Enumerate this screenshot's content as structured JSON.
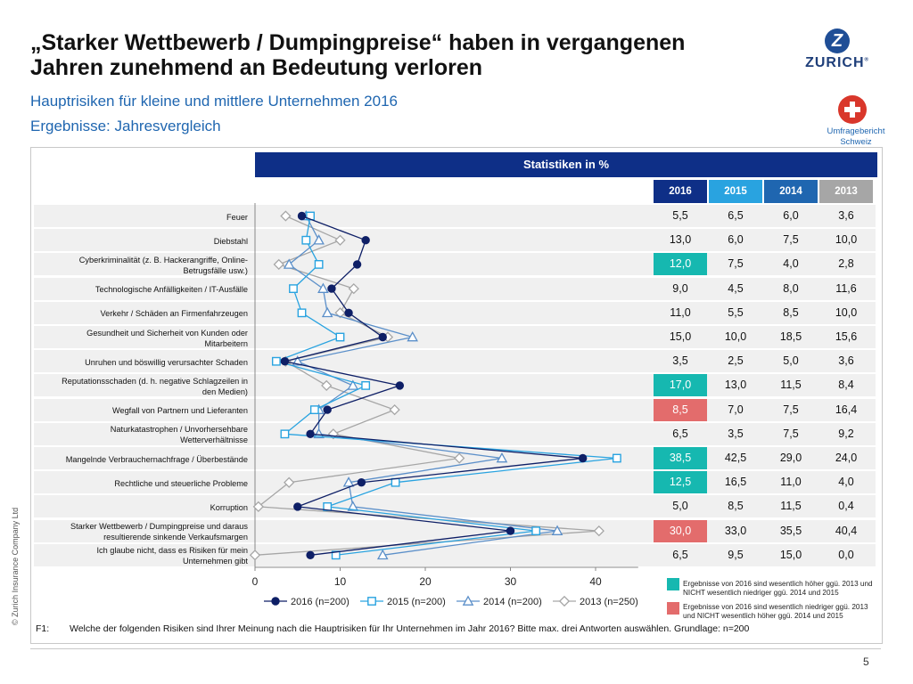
{
  "title_line1": "„Starker Wettbewerb / Dumpingpreise“ haben in vergangenen",
  "title_line2": "Jahren zunehmend an Bedeutung verloren",
  "subtitle1": "Hauptrisiken für kleine und mittlere Unternehmen 2016",
  "subtitle2": "Ergebnisse: Jahresvergleich",
  "logo": {
    "letter": "Z",
    "word": "ZURICH",
    "reg": "®"
  },
  "badge_line1": "Umfragebericht",
  "badge_line2": "Schweiz",
  "table": {
    "header": "Statistiken in %",
    "years": [
      "2016",
      "2015",
      "2014",
      "2013"
    ],
    "year_colors": [
      "#0e2f87",
      "#29a3e0",
      "#1f66b0",
      "#a6a6a6"
    ],
    "rows": [
      {
        "label_lines": [
          "Feuer"
        ],
        "values": [
          "5,5",
          "6,5",
          "6,0",
          "3,6"
        ],
        "flag": ""
      },
      {
        "label_lines": [
          "Diebstahl"
        ],
        "values": [
          "13,0",
          "6,0",
          "7,5",
          "10,0"
        ],
        "flag": ""
      },
      {
        "label_lines": [
          "Cyberkriminalität (z. B. Hackerangriffe, Online-",
          "Betrugsfälle usw.)"
        ],
        "values": [
          "12,0",
          "7,5",
          "4,0",
          "2,8"
        ],
        "flag": "up"
      },
      {
        "label_lines": [
          "Technologische Anfälligkeiten / IT-Ausfälle"
        ],
        "values": [
          "9,0",
          "4,5",
          "8,0",
          "11,6"
        ],
        "flag": ""
      },
      {
        "label_lines": [
          "Verkehr / Schäden an Firmenfahrzeugen"
        ],
        "values": [
          "11,0",
          "5,5",
          "8,5",
          "10,0"
        ],
        "flag": ""
      },
      {
        "label_lines": [
          "Gesundheit und Sicherheit von Kunden oder",
          "Mitarbeitern"
        ],
        "values": [
          "15,0",
          "10,0",
          "18,5",
          "15,6"
        ],
        "flag": ""
      },
      {
        "label_lines": [
          "Unruhen und böswillig verursachter Schaden"
        ],
        "values": [
          "3,5",
          "2,5",
          "5,0",
          "3,6"
        ],
        "flag": ""
      },
      {
        "label_lines": [
          "Reputationsschaden (d. h. negative Schlagzeilen in",
          "den Medien)"
        ],
        "values": [
          "17,0",
          "13,0",
          "11,5",
          "8,4"
        ],
        "flag": "up"
      },
      {
        "label_lines": [
          "Wegfall von Partnern und Lieferanten"
        ],
        "values": [
          "8,5",
          "7,0",
          "7,5",
          "16,4"
        ],
        "flag": "down"
      },
      {
        "label_lines": [
          "Naturkatastrophen / Unvorhersehbare",
          "Wetterverhältnisse"
        ],
        "values": [
          "6,5",
          "3,5",
          "7,5",
          "9,2"
        ],
        "flag": ""
      },
      {
        "label_lines": [
          "Mangelnde Verbrauchernachfrage / Überbestände"
        ],
        "values": [
          "38,5",
          "42,5",
          "29,0",
          "24,0"
        ],
        "flag": "up"
      },
      {
        "label_lines": [
          "Rechtliche und steuerliche Probleme"
        ],
        "values": [
          "12,5",
          "16,5",
          "11,0",
          "4,0"
        ],
        "flag": "up"
      },
      {
        "label_lines": [
          "Korruption"
        ],
        "values": [
          "5,0",
          "8,5",
          "11,5",
          "0,4"
        ],
        "flag": ""
      },
      {
        "label_lines": [
          "Starker Wettbewerb / Dumpingpreise und daraus",
          "resultierende sinkende Verkaufsmargen"
        ],
        "values": [
          "30,0",
          "33,0",
          "35,5",
          "40,4"
        ],
        "flag": "down"
      },
      {
        "label_lines": [
          "Ich glaube nicht, dass es Risiken für mein",
          "Unternehmen gibt"
        ],
        "values": [
          "6,5",
          "9,5",
          "15,0",
          "0,0"
        ],
        "flag": ""
      }
    ]
  },
  "chart_data": {
    "type": "line",
    "orientation": "horizontal",
    "categories": [
      "Feuer",
      "Diebstahl",
      "Cyberkriminalität (z. B. Hackerangriffe, Online-Betrugsfälle usw.)",
      "Technologische Anfälligkeiten / IT-Ausfälle",
      "Verkehr / Schäden an Firmenfahrzeugen",
      "Gesundheit und Sicherheit von Kunden oder Mitarbeitern",
      "Unruhen und böswillig verursachter Schaden",
      "Reputationsschaden (d. h. negative Schlagzeilen in den Medien)",
      "Wegfall von Partnern und Lieferanten",
      "Naturkatastrophen / Unvorhersehbare Wetterverhältnisse",
      "Mangelnde Verbrauchernachfrage / Überbestände",
      "Rechtliche und steuerliche Probleme",
      "Korruption",
      "Starker Wettbewerb / Dumpingpreise und daraus resultierende sinkende Verkaufsmargen",
      "Ich glaube nicht, dass es Risiken für mein Unternehmen gibt"
    ],
    "series": [
      {
        "name": "2016 (n=200)",
        "color": "#0e1f66",
        "marker": "circle",
        "values": [
          5.5,
          13.0,
          12.0,
          9.0,
          11.0,
          15.0,
          3.5,
          17.0,
          8.5,
          6.5,
          38.5,
          12.5,
          5.0,
          30.0,
          6.5
        ]
      },
      {
        "name": "2015 (n=200)",
        "color": "#29a3e0",
        "marker": "square",
        "values": [
          6.5,
          6.0,
          7.5,
          4.5,
          5.5,
          10.0,
          2.5,
          13.0,
          7.0,
          3.5,
          42.5,
          16.5,
          8.5,
          33.0,
          9.5
        ]
      },
      {
        "name": "2014 (n=200)",
        "color": "#5b8fc9",
        "marker": "triangle",
        "values": [
          6.0,
          7.5,
          4.0,
          8.0,
          8.5,
          18.5,
          5.0,
          11.5,
          7.5,
          7.5,
          29.0,
          11.0,
          11.5,
          35.5,
          15.0
        ]
      },
      {
        "name": "2013 (n=250)",
        "color": "#a6a6a6",
        "marker": "diamond",
        "values": [
          3.6,
          10.0,
          2.8,
          11.6,
          10.0,
          15.6,
          3.6,
          8.4,
          16.4,
          9.2,
          24.0,
          4.0,
          0.4,
          40.4,
          0.0
        ]
      }
    ],
    "xlim": [
      0,
      45
    ],
    "xticks": [
      "0",
      "10",
      "20",
      "30",
      "40"
    ],
    "legend_position": "bottom"
  },
  "legend_notes": {
    "up_color": "#16b8b0",
    "down_color": "#e36c6c",
    "up_line1": "Ergebnisse von 2016 sind wesentlich höher ggü. 2013 und",
    "up_line2": "NICHT wesentlich niedriger ggü. 2014 und 2015",
    "down_line1": "Ergebnisse von 2016 sind wesentlich niedriger ggü. 2013",
    "down_line2": "und NICHT wesentlich höher ggü. 2014 und 2015"
  },
  "footnote_code": "F1:",
  "footnote_text": "Welche der folgenden Risiken sind Ihrer Meinung nach die Hauptrisiken für Ihr Unternehmen im Jahr 2016? Bitte max. drei Antworten auswählen. Grundlage: n=200",
  "copyright": "© Zurich Insurance Company Ltd",
  "page_number": "5"
}
